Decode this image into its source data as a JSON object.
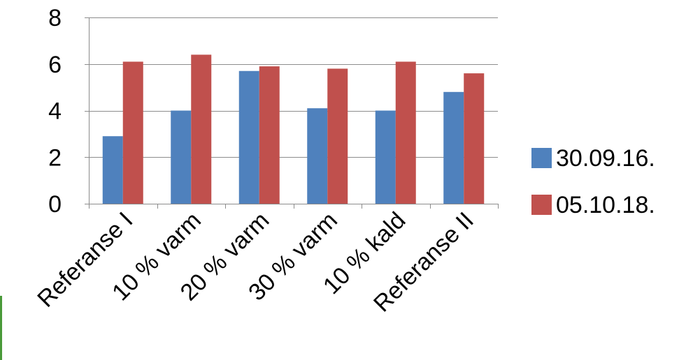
{
  "chart_data": {
    "type": "bar",
    "categories": [
      "Referanse I",
      "10 % varm",
      "20 % varm",
      "30 % varm",
      "10 % kald",
      "Referanse II"
    ],
    "series": [
      {
        "name": "30.09.16.",
        "color": "#4f81bd",
        "values": [
          2.9,
          4.0,
          5.7,
          4.1,
          4.0,
          4.8
        ]
      },
      {
        "name": "05.10.18.",
        "color": "#c0504d",
        "values": [
          6.1,
          6.4,
          5.9,
          5.8,
          6.1,
          5.6
        ]
      }
    ],
    "ylim": [
      0,
      8
    ],
    "yticks": [
      0,
      2,
      4,
      6,
      8
    ],
    "grid": true,
    "legend": "right",
    "title": "",
    "xlabel": "",
    "ylabel": ""
  }
}
